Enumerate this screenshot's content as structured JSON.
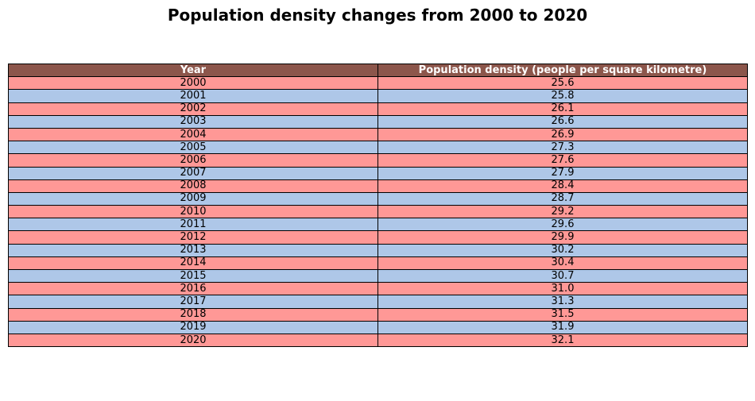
{
  "chart_data": {
    "type": "table",
    "title": "Population density changes from 2000 to 2020",
    "columns": [
      "Year",
      "Population density (people per square kilometre)"
    ],
    "rows": [
      [
        "2000",
        "25.6"
      ],
      [
        "2001",
        "25.8"
      ],
      [
        "2002",
        "26.1"
      ],
      [
        "2003",
        "26.6"
      ],
      [
        "2004",
        "26.9"
      ],
      [
        "2005",
        "27.3"
      ],
      [
        "2006",
        "27.6"
      ],
      [
        "2007",
        "27.9"
      ],
      [
        "2008",
        "28.4"
      ],
      [
        "2009",
        "28.7"
      ],
      [
        "2010",
        "29.2"
      ],
      [
        "2011",
        "29.6"
      ],
      [
        "2012",
        "29.9"
      ],
      [
        "2013",
        "30.2"
      ],
      [
        "2014",
        "30.4"
      ],
      [
        "2015",
        "30.7"
      ],
      [
        "2016",
        "31.0"
      ],
      [
        "2017",
        "31.3"
      ],
      [
        "2018",
        "31.5"
      ],
      [
        "2019",
        "31.9"
      ],
      [
        "2020",
        "32.1"
      ]
    ],
    "colors": {
      "header": "#8c564b",
      "row_even": "#ff9896",
      "row_odd": "#aec7e8"
    }
  }
}
